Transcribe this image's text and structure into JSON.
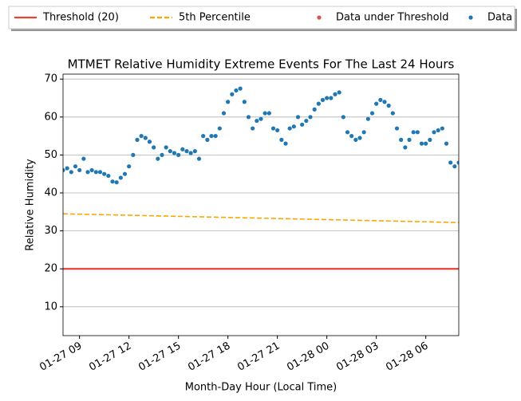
{
  "chart_data": {
    "type": "scatter",
    "title": "MTMET Relative Humidity Extreme Events For The Last 24 Hours",
    "x_label": "Month-Day Hour (Local Time)",
    "y_label": "Relative Humidity",
    "xlim": [
      8,
      32
    ],
    "ylim": [
      2.4,
      71.3
    ],
    "xticks": [
      {
        "value": 9,
        "label": "01-27 09"
      },
      {
        "value": 12,
        "label": "01-27 12"
      },
      {
        "value": 15,
        "label": "01-27 15"
      },
      {
        "value": 18,
        "label": "01-27 18"
      },
      {
        "value": 21,
        "label": "01-27 21"
      },
      {
        "value": 24,
        "label": "01-28 00"
      },
      {
        "value": 27,
        "label": "01-28 03"
      },
      {
        "value": 30,
        "label": "01-28 06"
      }
    ],
    "yticks": [
      10,
      20,
      30,
      40,
      50,
      60,
      70
    ],
    "grid": "y",
    "series": [
      {
        "name": "Threshold (20)",
        "color": "#e8413a",
        "style": "line",
        "x": [
          8,
          32
        ],
        "values": [
          20,
          20
        ]
      },
      {
        "name": "5th Percentile",
        "color": "#ffa500",
        "style": "dashed",
        "x": [
          8,
          32
        ],
        "values": [
          34.5,
          32.2
        ]
      },
      {
        "name": "Data under Threshold",
        "color": "#d9534f",
        "style": "points",
        "x": [],
        "values": []
      },
      {
        "name": "Data",
        "color": "#1f77b4",
        "style": "points",
        "x": [
          8,
          8.25,
          8.5,
          8.75,
          9,
          9.25,
          9.5,
          9.75,
          10,
          10.25,
          10.5,
          10.75,
          11,
          11.25,
          11.5,
          11.75,
          12,
          12.25,
          12.5,
          12.75,
          13,
          13.25,
          13.5,
          13.75,
          14,
          14.25,
          14.5,
          14.75,
          15,
          15.25,
          15.5,
          15.75,
          16,
          16.25,
          16.5,
          16.75,
          17,
          17.25,
          17.5,
          17.75,
          18,
          18.25,
          18.5,
          18.75,
          19,
          19.25,
          19.5,
          19.75,
          20,
          20.25,
          20.5,
          20.75,
          21,
          21.25,
          21.5,
          21.75,
          22,
          22.25,
          22.5,
          22.75,
          23,
          23.25,
          23.5,
          23.75,
          24,
          24.25,
          24.5,
          24.75,
          25,
          25.25,
          25.5,
          25.75,
          26,
          26.25,
          26.5,
          26.75,
          27,
          27.25,
          27.5,
          27.75,
          28,
          28.25,
          28.5,
          28.75,
          29,
          29.25,
          29.5,
          29.75,
          30,
          30.25,
          30.5,
          30.75,
          31,
          31.25,
          31.5,
          31.75,
          32
        ],
        "values": [
          46,
          46.5,
          45.5,
          47,
          46,
          49,
          45.5,
          46,
          45.5,
          45.5,
          45,
          44.5,
          43,
          42.8,
          44,
          45,
          47,
          50,
          54,
          55,
          54.5,
          53.5,
          52,
          49,
          50,
          52,
          51,
          50.5,
          50,
          51.5,
          51,
          50.5,
          51,
          49,
          55,
          54,
          55,
          55,
          57,
          61,
          64,
          66,
          67,
          67.5,
          64,
          60,
          57,
          59,
          59.5,
          61,
          61,
          57,
          56.5,
          54,
          53,
          57,
          57.5,
          60,
          58,
          59,
          60,
          62,
          63.5,
          64.5,
          65,
          65,
          66,
          66.5,
          60,
          56,
          55,
          54,
          54.5,
          56,
          59.5,
          61,
          63.5,
          64.5,
          64,
          63,
          61,
          57,
          54,
          52,
          54,
          56,
          56,
          53,
          53,
          54,
          56,
          56.5,
          57,
          53,
          48,
          47,
          48
        ]
      }
    ]
  }
}
